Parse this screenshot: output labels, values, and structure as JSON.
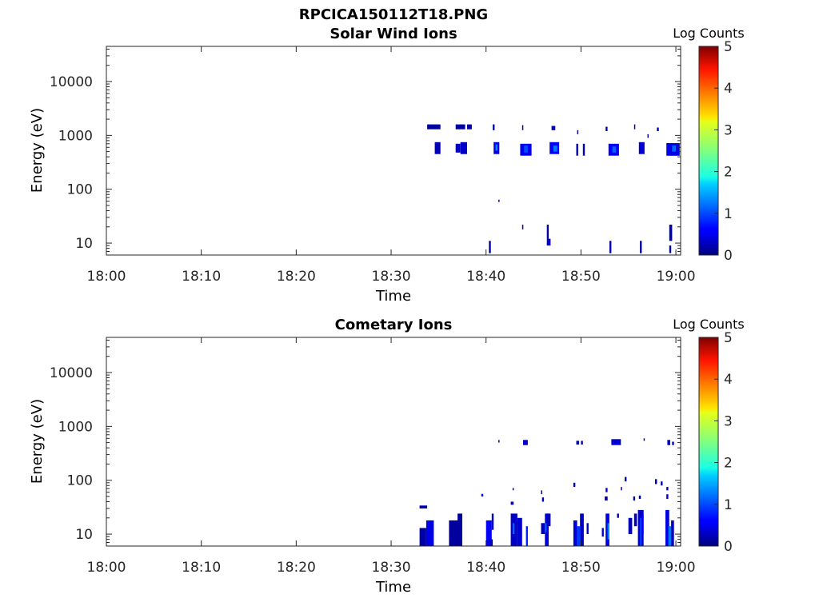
{
  "figure_title": "RPCICA150112T18.PNG",
  "chart_data": [
    {
      "type": "heatmap",
      "title": "Solar Wind Ions",
      "xlabel": "Time",
      "ylabel": "Energy (eV)",
      "x_ticks": [
        "18:00",
        "18:10",
        "18:20",
        "18:30",
        "18:40",
        "18:50",
        "19:00"
      ],
      "x_range_minutes": [
        0,
        60.5
      ],
      "y_scale": "log",
      "y_range": [
        6,
        45000
      ],
      "y_ticks": [
        10,
        100,
        1000,
        10000
      ],
      "y_tick_labels": [
        "10",
        "100",
        "1000",
        "10000"
      ],
      "colorbar": {
        "label": "Log Counts",
        "range": [
          0,
          5
        ],
        "ticks": [
          "0",
          "1",
          "2",
          "3",
          "4",
          "5"
        ],
        "colormap": "jet"
      },
      "cells": [
        [
          33.8,
          35.2,
          1300,
          1600,
          0.15
        ],
        [
          36.8,
          37.8,
          1300,
          1600,
          0.15
        ],
        [
          38.0,
          38.5,
          1300,
          1600,
          0.15
        ],
        [
          40.7,
          40.9,
          1250,
          1600,
          0.2
        ],
        [
          43.8,
          43.9,
          1250,
          1550,
          0.2
        ],
        [
          46.9,
          47.3,
          1250,
          1500,
          0.2
        ],
        [
          49.6,
          49.7,
          1050,
          1250,
          0.2
        ],
        [
          52.6,
          52.8,
          1200,
          1450,
          0.2
        ],
        [
          55.6,
          55.7,
          1300,
          1600,
          0.2
        ],
        [
          57.0,
          57.1,
          900,
          1050,
          0.2
        ],
        [
          58.0,
          58.2,
          1200,
          1400,
          0.2
        ],
        [
          34.6,
          35.2,
          450,
          750,
          0.25
        ],
        [
          36.8,
          37.3,
          480,
          700,
          0.3
        ],
        [
          37.3,
          38.0,
          450,
          750,
          0.35
        ],
        [
          40.8,
          41.4,
          450,
          750,
          0.5
        ],
        [
          41.0,
          41.2,
          520,
          680,
          1.3
        ],
        [
          43.6,
          44.8,
          420,
          700,
          0.55
        ],
        [
          44.0,
          44.4,
          480,
          650,
          1.0
        ],
        [
          46.7,
          47.7,
          450,
          750,
          0.6
        ],
        [
          47.1,
          47.5,
          500,
          650,
          1.2
        ],
        [
          49.5,
          49.7,
          420,
          700,
          0.25
        ],
        [
          50.2,
          50.4,
          420,
          700,
          0.25
        ],
        [
          52.9,
          54.0,
          420,
          700,
          0.6
        ],
        [
          53.3,
          53.7,
          480,
          620,
          1.1
        ],
        [
          56.1,
          56.7,
          450,
          750,
          0.4
        ],
        [
          59.0,
          60.4,
          420,
          720,
          0.5
        ],
        [
          59.6,
          60.0,
          500,
          650,
          1.1
        ],
        [
          41.3,
          41.4,
          58,
          64,
          0.3
        ],
        [
          40.3,
          40.5,
          6.5,
          11,
          0.2
        ],
        [
          43.8,
          43.9,
          18,
          22,
          0.2
        ],
        [
          46.4,
          46.6,
          9,
          22,
          0.2
        ],
        [
          46.6,
          46.8,
          9,
          12,
          0.4
        ],
        [
          53.0,
          53.2,
          6.5,
          11,
          0.2
        ],
        [
          56.2,
          56.4,
          6.5,
          11,
          0.2
        ],
        [
          59.3,
          59.6,
          11,
          22,
          0.25
        ],
        [
          59.3,
          59.5,
          6.5,
          9,
          0.2
        ]
      ]
    },
    {
      "type": "heatmap",
      "title": "Cometary Ions",
      "xlabel": "Time",
      "ylabel": "Energy (eV)",
      "x_ticks": [
        "18:00",
        "18:10",
        "18:20",
        "18:30",
        "18:40",
        "18:50",
        "19:00"
      ],
      "x_range_minutes": [
        0,
        60.5
      ],
      "y_scale": "log",
      "y_range": [
        6,
        45000
      ],
      "y_ticks": [
        10,
        100,
        1000,
        10000
      ],
      "y_tick_labels": [
        "10",
        "100",
        "1000",
        "10000"
      ],
      "colorbar": {
        "label": "Log Counts",
        "range": [
          0,
          5
        ],
        "ticks": [
          "0",
          "1",
          "2",
          "3",
          "4",
          "5"
        ],
        "colormap": "jet"
      },
      "cells": [
        [
          41.3,
          41.4,
          500,
          560,
          0.3
        ],
        [
          43.9,
          44.4,
          450,
          560,
          0.35
        ],
        [
          49.5,
          49.8,
          460,
          540,
          0.3
        ],
        [
          50.0,
          50.2,
          460,
          540,
          0.3
        ],
        [
          53.2,
          54.2,
          450,
          580,
          0.4
        ],
        [
          56.6,
          56.7,
          540,
          600,
          0.2
        ],
        [
          59.1,
          59.4,
          450,
          560,
          0.3
        ],
        [
          59.6,
          59.8,
          450,
          520,
          0.3
        ],
        [
          49.2,
          49.4,
          75,
          90,
          0.2
        ],
        [
          57.8,
          58.0,
          85,
          105,
          0.2
        ],
        [
          54.6,
          54.8,
          95,
          115,
          0.2
        ],
        [
          58.4,
          58.6,
          80,
          95,
          0.2
        ],
        [
          52.6,
          52.8,
          60,
          72,
          0.3
        ],
        [
          54.2,
          54.3,
          65,
          75,
          0.2
        ],
        [
          59.0,
          59.2,
          65,
          75,
          0.2
        ],
        [
          39.5,
          39.7,
          50,
          56,
          0.3
        ],
        [
          42.8,
          42.9,
          65,
          72,
          0.3
        ],
        [
          45.8,
          45.9,
          55,
          65,
          0.3
        ],
        [
          42.6,
          42.9,
          35,
          40,
          0.3
        ],
        [
          45.9,
          46.1,
          40,
          48,
          0.3
        ],
        [
          52.5,
          52.8,
          42,
          50,
          0.2
        ],
        [
          55.5,
          55.7,
          42,
          50,
          0.2
        ],
        [
          56.1,
          56.3,
          45,
          52,
          0.25
        ],
        [
          59.0,
          59.2,
          45,
          55,
          0.3
        ],
        [
          33.0,
          33.8,
          30,
          34,
          0.25
        ],
        [
          33.0,
          33.7,
          6,
          13,
          0.2
        ],
        [
          33.7,
          34.5,
          6,
          18,
          0.5
        ],
        [
          36.1,
          37.5,
          6,
          18,
          0.15
        ],
        [
          37.0,
          37.5,
          6,
          24,
          0.15
        ],
        [
          40.0,
          40.6,
          6,
          18,
          0.6
        ],
        [
          40.4,
          40.7,
          6,
          8,
          0.2
        ],
        [
          40.6,
          40.8,
          12,
          24,
          0.4
        ],
        [
          42.6,
          43.3,
          6,
          24,
          0.35
        ],
        [
          42.8,
          43.0,
          10,
          16,
          1.1
        ],
        [
          43.3,
          43.8,
          6,
          20,
          0.4
        ],
        [
          44.2,
          44.4,
          6,
          14,
          0.8
        ],
        [
          45.8,
          46.2,
          10,
          16,
          0.3
        ],
        [
          46.2,
          46.6,
          6,
          24,
          0.45
        ],
        [
          46.2,
          46.4,
          11,
          16,
          1.0
        ],
        [
          46.4,
          46.8,
          14,
          24,
          0.3
        ],
        [
          49.2,
          49.6,
          6,
          18,
          0.4
        ],
        [
          49.6,
          49.9,
          6,
          14,
          0.9
        ],
        [
          49.9,
          50.3,
          6,
          24,
          0.35
        ],
        [
          50.6,
          50.8,
          10,
          16,
          0.3
        ],
        [
          52.2,
          52.4,
          9,
          13,
          0.4
        ],
        [
          52.6,
          53.0,
          6,
          24,
          0.5
        ],
        [
          52.8,
          53.0,
          8,
          16,
          1.3
        ],
        [
          53.8,
          54.0,
          20,
          24,
          0.2
        ],
        [
          55.0,
          55.4,
          10,
          20,
          0.3
        ],
        [
          55.6,
          55.9,
          14,
          24,
          0.3
        ],
        [
          56.0,
          56.6,
          6,
          28,
          0.3
        ],
        [
          56.2,
          56.4,
          6,
          20,
          0.9
        ],
        [
          56.4,
          56.6,
          10,
          24,
          0.6
        ],
        [
          58.9,
          59.3,
          6,
          28,
          0.45
        ],
        [
          59.2,
          59.5,
          6,
          14,
          1.2
        ],
        [
          59.5,
          59.8,
          6,
          18,
          0.3
        ]
      ]
    }
  ]
}
